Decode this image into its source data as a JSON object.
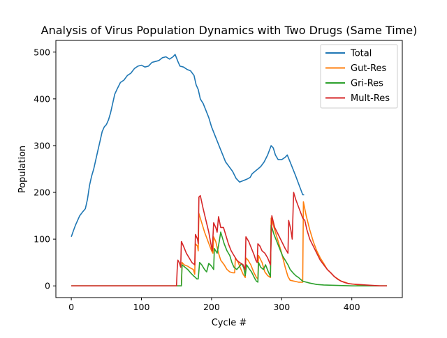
{
  "chart_data": {
    "type": "line",
    "title": "Analysis of Virus Population Dynamics with Two Drugs (Same Time)",
    "xlabel": "Cycle #",
    "ylabel": "Population",
    "xlim": [
      -22,
      472
    ],
    "ylim": [
      -25,
      525
    ],
    "xticks": [
      0,
      100,
      200,
      300,
      400
    ],
    "yticks": [
      0,
      100,
      200,
      300,
      400,
      500
    ],
    "grid": false,
    "legend_position": "top-right",
    "series": [
      {
        "name": "Total",
        "color": "#1f77b4",
        "points": [
          [
            0,
            105
          ],
          [
            3,
            118
          ],
          [
            6,
            130
          ],
          [
            9,
            140
          ],
          [
            12,
            150
          ],
          [
            16,
            158
          ],
          [
            20,
            165
          ],
          [
            23,
            185
          ],
          [
            26,
            215
          ],
          [
            29,
            235
          ],
          [
            32,
            250
          ],
          [
            35,
            270
          ],
          [
            38,
            290
          ],
          [
            41,
            310
          ],
          [
            44,
            330
          ],
          [
            47,
            340
          ],
          [
            50,
            345
          ],
          [
            53,
            355
          ],
          [
            56,
            370
          ],
          [
            59,
            390
          ],
          [
            62,
            410
          ],
          [
            65,
            420
          ],
          [
            70,
            435
          ],
          [
            75,
            440
          ],
          [
            80,
            450
          ],
          [
            85,
            455
          ],
          [
            90,
            465
          ],
          [
            95,
            470
          ],
          [
            100,
            472
          ],
          [
            105,
            468
          ],
          [
            110,
            470
          ],
          [
            115,
            478
          ],
          [
            120,
            480
          ],
          [
            125,
            482
          ],
          [
            130,
            488
          ],
          [
            135,
            490
          ],
          [
            140,
            485
          ],
          [
            145,
            490
          ],
          [
            148,
            495
          ],
          [
            152,
            480
          ],
          [
            155,
            470
          ],
          [
            160,
            468
          ],
          [
            165,
            463
          ],
          [
            170,
            460
          ],
          [
            175,
            450
          ],
          [
            178,
            430
          ],
          [
            181,
            420
          ],
          [
            184,
            400
          ],
          [
            188,
            390
          ],
          [
            192,
            375
          ],
          [
            196,
            360
          ],
          [
            200,
            340
          ],
          [
            204,
            325
          ],
          [
            208,
            310
          ],
          [
            212,
            295
          ],
          [
            216,
            280
          ],
          [
            220,
            265
          ],
          [
            225,
            255
          ],
          [
            230,
            245
          ],
          [
            235,
            230
          ],
          [
            240,
            222
          ],
          [
            245,
            225
          ],
          [
            250,
            228
          ],
          [
            255,
            232
          ],
          [
            258,
            240
          ],
          [
            262,
            245
          ],
          [
            266,
            250
          ],
          [
            270,
            255
          ],
          [
            275,
            265
          ],
          [
            280,
            280
          ],
          [
            285,
            300
          ],
          [
            288,
            295
          ],
          [
            291,
            280
          ],
          [
            295,
            270
          ],
          [
            300,
            270
          ],
          [
            305,
            275
          ],
          [
            308,
            280
          ],
          [
            312,
            265
          ],
          [
            316,
            250
          ],
          [
            320,
            235
          ],
          [
            325,
            215
          ],
          [
            330,
            195
          ],
          [
            332,
            195
          ]
        ]
      },
      {
        "name": "Gut-Res",
        "color": "#ff7f0e",
        "points": [
          [
            0,
            0
          ],
          [
            152,
            0
          ],
          [
            155,
            0
          ],
          [
            157,
            0
          ],
          [
            158,
            50
          ],
          [
            161,
            45
          ],
          [
            166,
            42
          ],
          [
            170,
            38
          ],
          [
            174,
            35
          ],
          [
            176,
            25
          ],
          [
            177,
            90
          ],
          [
            180,
            85
          ],
          [
            181,
            75
          ],
          [
            182,
            155
          ],
          [
            185,
            140
          ],
          [
            190,
            115
          ],
          [
            195,
            95
          ],
          [
            200,
            75
          ],
          [
            202,
            70
          ],
          [
            203,
            105
          ],
          [
            206,
            95
          ],
          [
            210,
            70
          ],
          [
            213,
            55
          ],
          [
            218,
            45
          ],
          [
            222,
            35
          ],
          [
            226,
            30
          ],
          [
            230,
            28
          ],
          [
            233,
            28
          ],
          [
            234,
            60
          ],
          [
            238,
            50
          ],
          [
            242,
            35
          ],
          [
            245,
            25
          ],
          [
            248,
            18
          ],
          [
            249,
            60
          ],
          [
            252,
            55
          ],
          [
            256,
            45
          ],
          [
            260,
            30
          ],
          [
            264,
            18
          ],
          [
            266,
            15
          ],
          [
            267,
            65
          ],
          [
            272,
            50
          ],
          [
            276,
            30
          ],
          [
            280,
            22
          ],
          [
            284,
            18
          ],
          [
            285,
            145
          ],
          [
            290,
            120
          ],
          [
            295,
            95
          ],
          [
            300,
            70
          ],
          [
            305,
            40
          ],
          [
            309,
            20
          ],
          [
            312,
            12
          ],
          [
            318,
            10
          ],
          [
            324,
            8
          ],
          [
            328,
            8
          ],
          [
            330,
            8
          ],
          [
            331,
            180
          ],
          [
            335,
            150
          ],
          [
            340,
            120
          ],
          [
            345,
            95
          ],
          [
            350,
            75
          ],
          [
            355,
            60
          ],
          [
            360,
            48
          ],
          [
            365,
            35
          ],
          [
            370,
            28
          ],
          [
            375,
            20
          ],
          [
            380,
            15
          ],
          [
            385,
            10
          ],
          [
            390,
            8
          ],
          [
            395,
            5
          ],
          [
            400,
            4
          ],
          [
            410,
            2
          ],
          [
            420,
            1
          ],
          [
            430,
            0
          ],
          [
            450,
            0
          ]
        ]
      },
      {
        "name": "Gri-Res",
        "color": "#2ca02c",
        "points": [
          [
            0,
            0
          ],
          [
            152,
            0
          ],
          [
            155,
            0
          ],
          [
            157,
            0
          ],
          [
            158,
            45
          ],
          [
            162,
            40
          ],
          [
            166,
            35
          ],
          [
            170,
            28
          ],
          [
            174,
            22
          ],
          [
            177,
            18
          ],
          [
            179,
            15
          ],
          [
            181,
            15
          ],
          [
            183,
            50
          ],
          [
            186,
            45
          ],
          [
            190,
            35
          ],
          [
            193,
            30
          ],
          [
            196,
            48
          ],
          [
            200,
            42
          ],
          [
            203,
            35
          ],
          [
            204,
            80
          ],
          [
            208,
            70
          ],
          [
            211,
            95
          ],
          [
            213,
            115
          ],
          [
            215,
            105
          ],
          [
            218,
            90
          ],
          [
            222,
            75
          ],
          [
            226,
            65
          ],
          [
            229,
            50
          ],
          [
            232,
            40
          ],
          [
            236,
            35
          ],
          [
            240,
            42
          ],
          [
            243,
            48
          ],
          [
            246,
            38
          ],
          [
            248,
            22
          ],
          [
            250,
            45
          ],
          [
            253,
            38
          ],
          [
            257,
            30
          ],
          [
            262,
            15
          ],
          [
            264,
            10
          ],
          [
            266,
            8
          ],
          [
            267,
            50
          ],
          [
            270,
            40
          ],
          [
            274,
            35
          ],
          [
            277,
            45
          ],
          [
            281,
            30
          ],
          [
            284,
            20
          ],
          [
            285,
            130
          ],
          [
            289,
            110
          ],
          [
            293,
            95
          ],
          [
            297,
            80
          ],
          [
            301,
            65
          ],
          [
            305,
            55
          ],
          [
            309,
            45
          ],
          [
            312,
            35
          ],
          [
            316,
            28
          ],
          [
            320,
            22
          ],
          [
            324,
            18
          ],
          [
            330,
            10
          ],
          [
            340,
            6
          ],
          [
            350,
            3
          ],
          [
            360,
            2
          ],
          [
            380,
            1
          ],
          [
            400,
            0
          ],
          [
            450,
            0
          ]
        ]
      },
      {
        "name": "Mult-Res",
        "color": "#d62728",
        "points": [
          [
            0,
            0
          ],
          [
            148,
            0
          ],
          [
            150,
            0
          ],
          [
            151,
            35
          ],
          [
            152,
            55
          ],
          [
            154,
            50
          ],
          [
            156,
            40
          ],
          [
            157,
            95
          ],
          [
            160,
            85
          ],
          [
            164,
            70
          ],
          [
            168,
            60
          ],
          [
            172,
            50
          ],
          [
            176,
            45
          ],
          [
            177,
            110
          ],
          [
            180,
            100
          ],
          [
            181,
            90
          ],
          [
            182,
            190
          ],
          [
            184,
            193
          ],
          [
            188,
            165
          ],
          [
            192,
            140
          ],
          [
            196,
            115
          ],
          [
            199,
            90
          ],
          [
            201,
            75
          ],
          [
            203,
            135
          ],
          [
            206,
            125
          ],
          [
            208,
            115
          ],
          [
            210,
            148
          ],
          [
            213,
            125
          ],
          [
            217,
            125
          ],
          [
            220,
            110
          ],
          [
            224,
            90
          ],
          [
            228,
            75
          ],
          [
            232,
            65
          ],
          [
            236,
            55
          ],
          [
            240,
            50
          ],
          [
            245,
            45
          ],
          [
            248,
            35
          ],
          [
            249,
            105
          ],
          [
            253,
            95
          ],
          [
            257,
            80
          ],
          [
            261,
            65
          ],
          [
            263,
            55
          ],
          [
            265,
            50
          ],
          [
            266,
            90
          ],
          [
            269,
            85
          ],
          [
            272,
            75
          ],
          [
            276,
            70
          ],
          [
            280,
            60
          ],
          [
            284,
            45
          ],
          [
            286,
            150
          ],
          [
            290,
            125
          ],
          [
            295,
            110
          ],
          [
            300,
            95
          ],
          [
            305,
            80
          ],
          [
            309,
            70
          ],
          [
            310,
            140
          ],
          [
            313,
            120
          ],
          [
            315,
            100
          ],
          [
            317,
            200
          ],
          [
            320,
            185
          ],
          [
            325,
            165
          ],
          [
            330,
            145
          ],
          [
            333,
            140
          ],
          [
            336,
            120
          ],
          [
            340,
            100
          ],
          [
            345,
            85
          ],
          [
            350,
            70
          ],
          [
            355,
            55
          ],
          [
            360,
            45
          ],
          [
            365,
            35
          ],
          [
            370,
            28
          ],
          [
            375,
            20
          ],
          [
            380,
            14
          ],
          [
            385,
            10
          ],
          [
            390,
            7
          ],
          [
            395,
            5
          ],
          [
            400,
            4
          ],
          [
            410,
            3
          ],
          [
            420,
            2
          ],
          [
            430,
            1
          ],
          [
            440,
            0
          ],
          [
            450,
            0
          ]
        ]
      }
    ]
  }
}
